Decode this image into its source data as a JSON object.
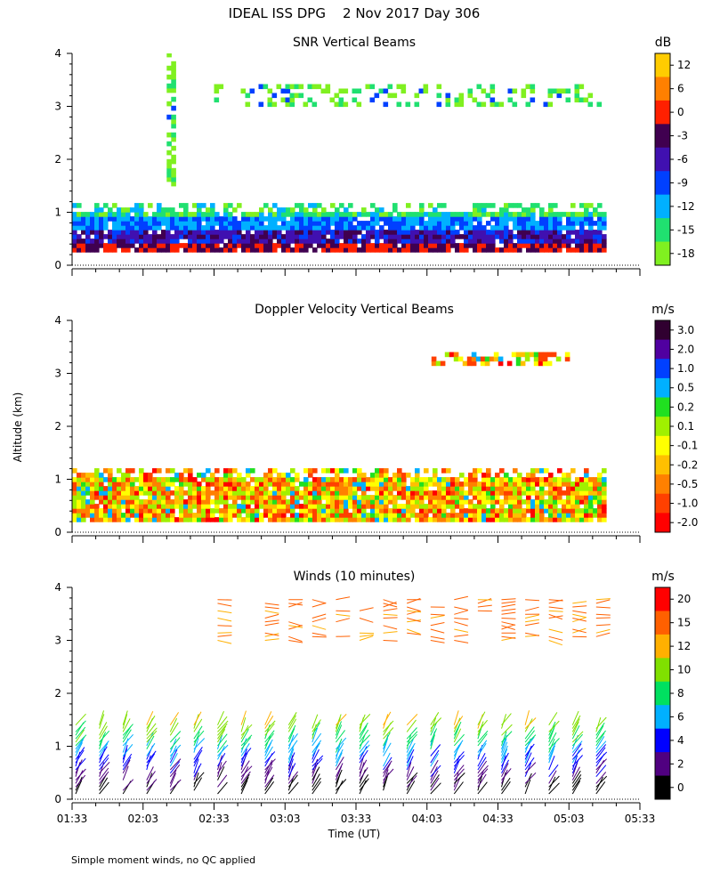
{
  "figure": {
    "title": "IDEAL ISS DPG    2 Nov 2017 Day 306",
    "ylabel": "Altitude (km)",
    "xlabel": "Time (UT)",
    "footnote": "Simple moment winds, no QC applied",
    "x_tick_labels": [
      "01:33",
      "02:03",
      "02:33",
      "03:03",
      "03:33",
      "04:03",
      "04:33",
      "05:03",
      "05:33"
    ]
  },
  "chart_data": [
    {
      "type": "heatmap",
      "title": "SNR Vertical Beams",
      "ylim": [
        0,
        4
      ],
      "y_ticks": [
        "0",
        "1",
        "2",
        "3",
        "4"
      ],
      "xlim": [
        "01:33",
        "05:33"
      ],
      "colorbar": {
        "unit": "dB",
        "labels": [
          "12",
          "6",
          "0",
          "-3",
          "-6",
          "-9",
          "-12",
          "-15",
          "-18"
        ],
        "colors": [
          "#ffcc00",
          "#ff8000",
          "#ff2000",
          "#400050",
          "#4010b0",
          "#0040ff",
          "#00b0ff",
          "#20e070",
          "#80f020"
        ]
      },
      "regions": [
        {
          "t0": "01:33",
          "t1": "05:18",
          "alt0": 0.25,
          "alt1": 1.1,
          "desc": "boundary layer echo"
        },
        {
          "t0": "02:33",
          "t1": "05:18",
          "alt0": 3.0,
          "alt1": 3.4,
          "desc": "upper layer echo"
        },
        {
          "t0": "02:13",
          "t1": "02:15",
          "alt0": 1.5,
          "alt1": 4.0,
          "desc": "vertical streak"
        }
      ]
    },
    {
      "type": "heatmap",
      "title": "Doppler Velocity Vertical Beams",
      "ylim": [
        0,
        4
      ],
      "y_ticks": [
        "0",
        "1",
        "2",
        "3",
        "4"
      ],
      "xlim": [
        "01:33",
        "05:33"
      ],
      "colorbar": {
        "unit": "m/s",
        "labels": [
          "3.0",
          "2.0",
          "1.0",
          "0.5",
          "0.2",
          "0.1",
          "-0.1",
          "-0.2",
          "-0.5",
          "-1.0",
          "-2.0"
        ],
        "colors": [
          "#300030",
          "#5000a0",
          "#0040ff",
          "#00b0ff",
          "#20e020",
          "#a0f000",
          "#ffff00",
          "#ffc000",
          "#ff8000",
          "#ff4000",
          "#ff0000"
        ]
      },
      "regions": [
        {
          "t0": "01:33",
          "t1": "05:18",
          "alt0": 0.2,
          "alt1": 1.2,
          "desc": "boundary layer velocity"
        },
        {
          "t0": "04:03",
          "t1": "05:03",
          "alt0": 3.15,
          "alt1": 3.35,
          "desc": "upper layer velocity"
        }
      ]
    },
    {
      "type": "scatter",
      "title": "Winds (10 minutes)",
      "ylim": [
        0,
        4
      ],
      "y_ticks": [
        "0",
        "1",
        "2",
        "3",
        "4"
      ],
      "xlim": [
        "01:33",
        "05:33"
      ],
      "x_ticks": [
        "01:33",
        "02:03",
        "02:33",
        "03:03",
        "03:33",
        "04:03",
        "04:33",
        "05:03",
        "05:33"
      ],
      "colorbar": {
        "unit": "m/s",
        "labels": [
          "20",
          "15",
          "12",
          "10",
          "8",
          "6",
          "4",
          "2",
          "0"
        ],
        "colors": [
          "#ff0000",
          "#ff6000",
          "#ffb000",
          "#80e000",
          "#00e060",
          "#00b0ff",
          "#0000ff",
          "#500080",
          "#000000"
        ]
      },
      "profile_times": [
        "01:33",
        "01:43",
        "01:53",
        "02:03",
        "02:13",
        "02:23",
        "02:33",
        "02:43",
        "02:53",
        "03:03",
        "03:13",
        "03:23",
        "03:33",
        "03:43",
        "03:53",
        "04:03",
        "04:13",
        "04:23",
        "04:33",
        "04:43",
        "04:53",
        "05:03",
        "05:13"
      ]
    }
  ]
}
